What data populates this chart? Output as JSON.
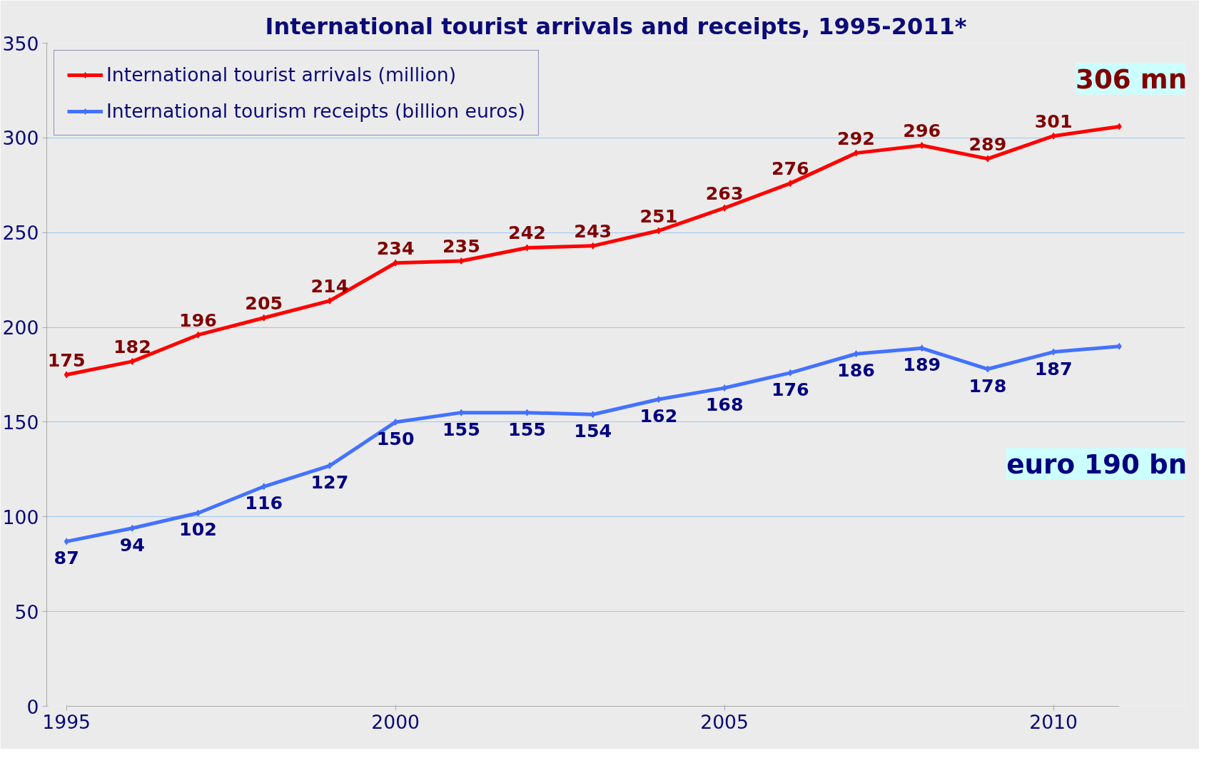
{
  "chart_data": {
    "type": "line",
    "title": "International tourist arrivals and receipts, 1995-2011*",
    "x": [
      1995,
      1996,
      1997,
      1998,
      1999,
      2000,
      2001,
      2002,
      2003,
      2004,
      2005,
      2006,
      2007,
      2008,
      2009,
      2010,
      2011
    ],
    "series": [
      {
        "name": "International tourist arrivals (million)",
        "color": "#ff0000",
        "values": [
          175,
          182,
          196,
          205,
          214,
          234,
          235,
          242,
          243,
          251,
          263,
          276,
          292,
          296,
          289,
          301,
          306
        ],
        "value_labels": [
          "175",
          "182",
          "196",
          "205",
          "214",
          "234",
          "235",
          "242",
          "243",
          "251",
          "263",
          "276",
          "292",
          "296",
          "289",
          "301",
          null
        ]
      },
      {
        "name": "International tourism receipts (billion euros)",
        "color": "#4472ff",
        "values": [
          87,
          94,
          102,
          116,
          127,
          150,
          155,
          155,
          154,
          162,
          168,
          176,
          186,
          189,
          178,
          187,
          190
        ],
        "value_labels": [
          "87",
          "94",
          "102",
          "116",
          "127",
          "150",
          "155",
          "155",
          "154",
          "162",
          "168",
          "176",
          "186",
          "189",
          "178",
          "187",
          null
        ]
      }
    ],
    "annotations": [
      "306 mn",
      "euro 190 bn"
    ],
    "xlim": [
      1995,
      2011
    ],
    "ylim": [
      0,
      350
    ],
    "xticks": [
      1995,
      2000,
      2005,
      2010
    ],
    "yticks": [
      0,
      50,
      100,
      150,
      200,
      250,
      300,
      350
    ],
    "grid": "y",
    "legend": "top left",
    "marker": "diamond",
    "line_style": "solid"
  }
}
